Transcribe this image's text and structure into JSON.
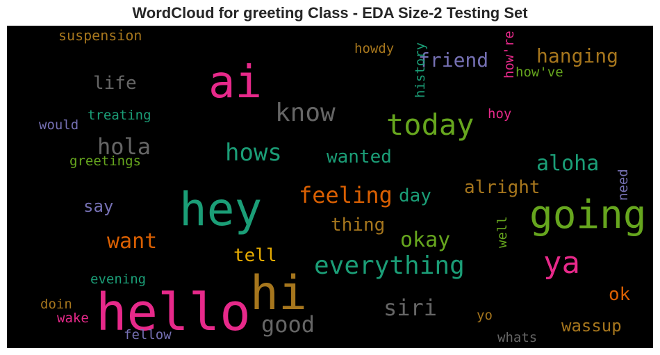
{
  "chart_data": {
    "type": "wordcloud",
    "title": "WordCloud for greeting Class - EDA Size-2 Testing Set",
    "background": "#000000",
    "palette": [
      "#1b9e77",
      "#d95f02",
      "#7570b3",
      "#e7298a",
      "#66a61e",
      "#e6ab02",
      "#a6761d",
      "#666666"
    ],
    "words": [
      {
        "text": "hello",
        "color": "#e7298a"
      },
      {
        "text": "hey",
        "color": "#1b9e77"
      },
      {
        "text": "hi",
        "color": "#a6761d"
      },
      {
        "text": "ai",
        "color": "#e7298a"
      },
      {
        "text": "going",
        "color": "#66a61e"
      },
      {
        "text": "ya",
        "color": "#e7298a"
      },
      {
        "text": "today",
        "color": "#66a61e"
      },
      {
        "text": "everything",
        "color": "#1b9e77"
      },
      {
        "text": "know",
        "color": "#666666"
      },
      {
        "text": "hows",
        "color": "#1b9e77"
      },
      {
        "text": "feeling",
        "color": "#d95f02"
      },
      {
        "text": "hola",
        "color": "#666666"
      },
      {
        "text": "siri",
        "color": "#666666"
      },
      {
        "text": "good",
        "color": "#666666"
      },
      {
        "text": "want",
        "color": "#d95f02"
      },
      {
        "text": "aloha",
        "color": "#1b9e77"
      },
      {
        "text": "okay",
        "color": "#66a61e"
      },
      {
        "text": "hanging",
        "color": "#a6761d"
      },
      {
        "text": "friend",
        "color": "#7570b3"
      },
      {
        "text": "alright",
        "color": "#a6761d"
      },
      {
        "text": "wassup",
        "color": "#a6761d"
      },
      {
        "text": "life",
        "color": "#666666"
      },
      {
        "text": "wanted",
        "color": "#1b9e77"
      },
      {
        "text": "thing",
        "color": "#a6761d"
      },
      {
        "text": "tell",
        "color": "#e6ab02"
      },
      {
        "text": "day",
        "color": "#1b9e77"
      },
      {
        "text": "say",
        "color": "#7570b3"
      },
      {
        "text": "ok",
        "color": "#d95f02"
      },
      {
        "text": "suspension",
        "color": "#a6761d"
      },
      {
        "text": "how're",
        "color": "#e7298a"
      },
      {
        "text": "history",
        "color": "#1b9e77"
      },
      {
        "text": "howdy",
        "color": "#a6761d"
      },
      {
        "text": "how've",
        "color": "#66a61e"
      },
      {
        "text": "treating",
        "color": "#1b9e77"
      },
      {
        "text": "would",
        "color": "#7570b3"
      },
      {
        "text": "greetings",
        "color": "#66a61e"
      },
      {
        "text": "hoy",
        "color": "#e7298a"
      },
      {
        "text": "need",
        "color": "#7570b3"
      },
      {
        "text": "well",
        "color": "#66a61e"
      },
      {
        "text": "evening",
        "color": "#1b9e77"
      },
      {
        "text": "doin",
        "color": "#a6761d"
      },
      {
        "text": "wake",
        "color": "#e7298a"
      },
      {
        "text": "fellow",
        "color": "#7570b3"
      },
      {
        "text": "yo",
        "color": "#a6761d"
      },
      {
        "text": "whats",
        "color": "#666666"
      }
    ]
  }
}
